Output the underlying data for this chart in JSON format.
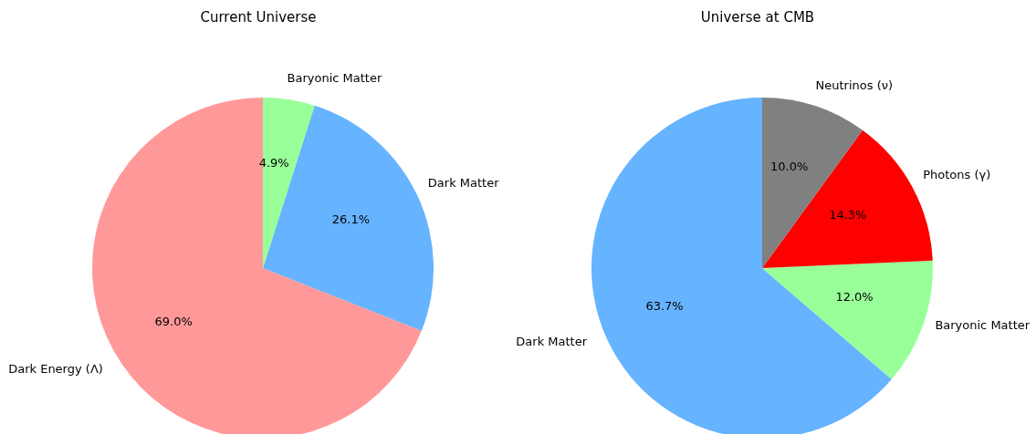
{
  "chart_data": [
    {
      "type": "pie",
      "title": "Current Universe",
      "categories": [
        "Dark Energy (Λ)",
        "Dark Matter",
        "Baryonic Matter"
      ],
      "values": [
        69.0,
        26.1,
        4.9
      ],
      "colors": [
        "#ff9999",
        "#66b3ff",
        "#99ff99"
      ],
      "value_labels": [
        "69.0%",
        "26.1%",
        "4.9%"
      ]
    },
    {
      "type": "pie",
      "title": "Universe at CMB",
      "categories": [
        "Dark Matter",
        "Baryonic Matter",
        "Photons (γ)",
        "Neutrinos (ν)"
      ],
      "values": [
        63.7,
        12.0,
        14.3,
        10.0
      ],
      "colors": [
        "#66b3ff",
        "#99ff99",
        "#ff0000",
        "#808080"
      ],
      "value_labels": [
        "63.7%",
        "12.0%",
        "14.3%",
        "10.0%"
      ]
    }
  ]
}
